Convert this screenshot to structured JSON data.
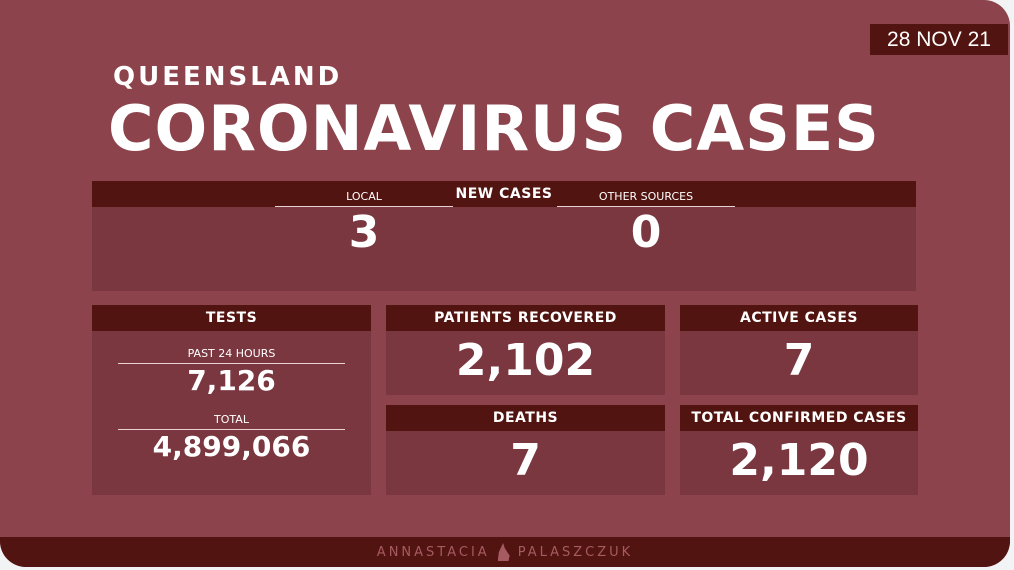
{
  "date": "28 NOV 21",
  "subtitle": "QUEENSLAND",
  "title": "CORONAVIRUS CASES",
  "new_cases": {
    "header": "NEW CASES",
    "local_label": "LOCAL",
    "local_value": "3",
    "other_label": "OTHER SOURCES",
    "other_value": "0"
  },
  "tests": {
    "header": "TESTS",
    "past_label": "PAST 24 HOURS",
    "past_value": "7,126",
    "total_label": "TOTAL",
    "total_value": "4,899,066"
  },
  "recovered": {
    "header": "PATIENTS RECOVERED",
    "value": "2,102"
  },
  "active": {
    "header": "ACTIVE CASES",
    "value": "7"
  },
  "deaths": {
    "header": "DEATHS",
    "value": "7"
  },
  "total_confirmed": {
    "header": "TOTAL CONFIRMED CASES",
    "value": "2,120"
  },
  "footer": {
    "first": "ANNASTACIA",
    "last": "PALASZCZUK"
  }
}
